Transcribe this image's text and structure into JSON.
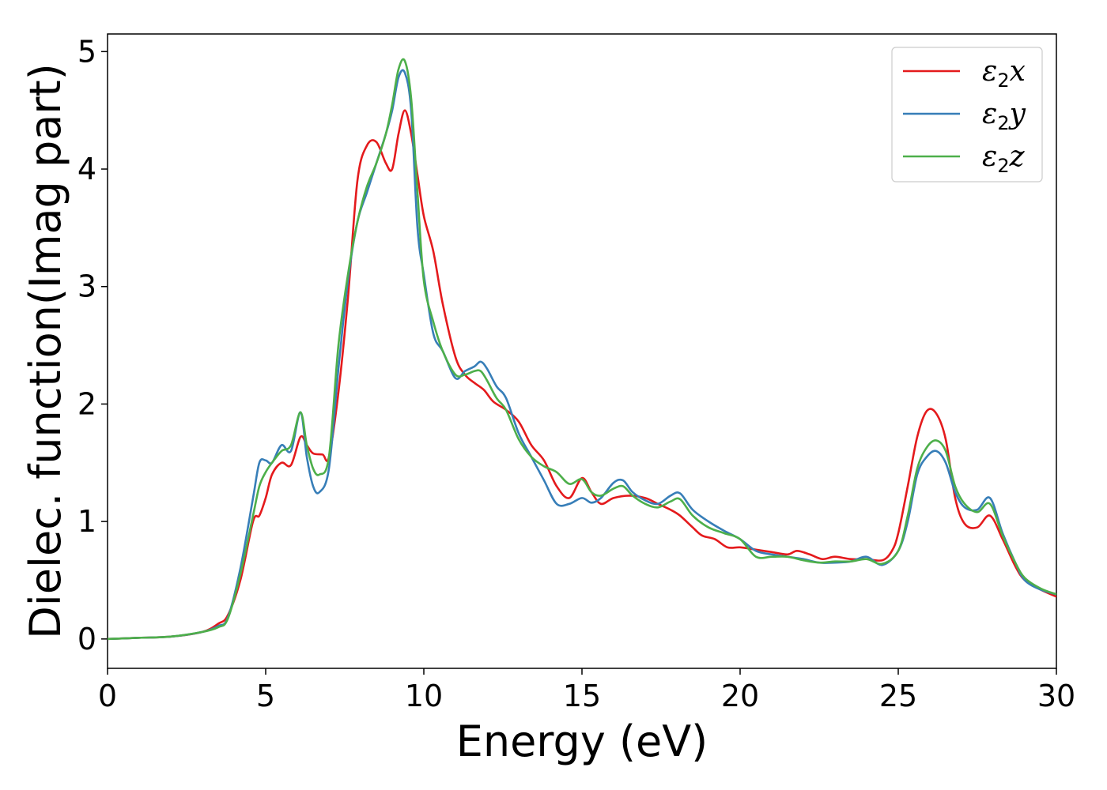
{
  "chart_data": {
    "type": "line",
    "xlabel": "Energy (eV)",
    "ylabel": "Dielec. function(Imag part)",
    "xlim": [
      0,
      30
    ],
    "ylim": [
      -0.25,
      5.15
    ],
    "xticks": [
      0,
      5,
      10,
      15,
      20,
      25,
      30
    ],
    "yticks": [
      0,
      1,
      2,
      3,
      4,
      5
    ],
    "grid": false,
    "legend_position": "top-right",
    "series": [
      {
        "name": "ε₂x",
        "label_base": "ε",
        "label_sub": "2",
        "label_suffix": "x",
        "color": "#e41a1c",
        "points": [
          [
            0,
            0
          ],
          [
            1,
            0.01
          ],
          [
            2,
            0.02
          ],
          [
            3,
            0.06
          ],
          [
            3.5,
            0.13
          ],
          [
            3.8,
            0.2
          ],
          [
            4.2,
            0.5
          ],
          [
            4.6,
            1.0
          ],
          [
            4.8,
            1.05
          ],
          [
            5.0,
            1.2
          ],
          [
            5.2,
            1.4
          ],
          [
            5.5,
            1.5
          ],
          [
            5.8,
            1.48
          ],
          [
            6.1,
            1.72
          ],
          [
            6.3,
            1.65
          ],
          [
            6.5,
            1.58
          ],
          [
            6.8,
            1.57
          ],
          [
            7.0,
            1.55
          ],
          [
            7.3,
            2.1
          ],
          [
            7.6,
            2.9
          ],
          [
            7.9,
            3.9
          ],
          [
            8.2,
            4.2
          ],
          [
            8.5,
            4.23
          ],
          [
            8.8,
            4.05
          ],
          [
            9.0,
            4.0
          ],
          [
            9.2,
            4.3
          ],
          [
            9.4,
            4.5
          ],
          [
            9.6,
            4.3
          ],
          [
            9.8,
            3.95
          ],
          [
            10.0,
            3.6
          ],
          [
            10.3,
            3.3
          ],
          [
            10.6,
            2.85
          ],
          [
            11.0,
            2.4
          ],
          [
            11.3,
            2.25
          ],
          [
            11.6,
            2.18
          ],
          [
            11.9,
            2.12
          ],
          [
            12.2,
            2.02
          ],
          [
            12.6,
            1.95
          ],
          [
            13.0,
            1.85
          ],
          [
            13.4,
            1.65
          ],
          [
            13.8,
            1.52
          ],
          [
            14.2,
            1.3
          ],
          [
            14.6,
            1.2
          ],
          [
            15.0,
            1.37
          ],
          [
            15.3,
            1.25
          ],
          [
            15.6,
            1.15
          ],
          [
            16.0,
            1.2
          ],
          [
            16.5,
            1.22
          ],
          [
            17.0,
            1.2
          ],
          [
            17.4,
            1.15
          ],
          [
            17.8,
            1.1
          ],
          [
            18.1,
            1.05
          ],
          [
            18.5,
            0.95
          ],
          [
            18.8,
            0.88
          ],
          [
            19.2,
            0.85
          ],
          [
            19.6,
            0.78
          ],
          [
            20.0,
            0.78
          ],
          [
            20.5,
            0.76
          ],
          [
            21.0,
            0.74
          ],
          [
            21.5,
            0.72
          ],
          [
            21.8,
            0.75
          ],
          [
            22.2,
            0.72
          ],
          [
            22.6,
            0.68
          ],
          [
            23.0,
            0.7
          ],
          [
            23.5,
            0.68
          ],
          [
            24.0,
            0.68
          ],
          [
            24.5,
            0.67
          ],
          [
            24.8,
            0.75
          ],
          [
            25.0,
            0.9
          ],
          [
            25.3,
            1.3
          ],
          [
            25.6,
            1.72
          ],
          [
            25.9,
            1.94
          ],
          [
            26.2,
            1.92
          ],
          [
            26.5,
            1.7
          ],
          [
            26.8,
            1.2
          ],
          [
            27.1,
            0.98
          ],
          [
            27.5,
            0.95
          ],
          [
            27.9,
            1.05
          ],
          [
            28.3,
            0.85
          ],
          [
            28.7,
            0.62
          ],
          [
            29.0,
            0.5
          ],
          [
            29.5,
            0.42
          ],
          [
            30.0,
            0.36
          ]
        ]
      },
      {
        "name": "ε₂y",
        "label_base": "ε",
        "label_sub": "2",
        "label_suffix": "y",
        "color": "#377eb8",
        "points": [
          [
            0,
            0
          ],
          [
            1,
            0.01
          ],
          [
            2,
            0.02
          ],
          [
            3,
            0.06
          ],
          [
            3.5,
            0.11
          ],
          [
            3.8,
            0.18
          ],
          [
            4.2,
            0.6
          ],
          [
            4.6,
            1.2
          ],
          [
            4.8,
            1.5
          ],
          [
            5.0,
            1.52
          ],
          [
            5.2,
            1.5
          ],
          [
            5.5,
            1.65
          ],
          [
            5.8,
            1.6
          ],
          [
            6.1,
            1.93
          ],
          [
            6.3,
            1.55
          ],
          [
            6.5,
            1.3
          ],
          [
            6.7,
            1.25
          ],
          [
            7.0,
            1.45
          ],
          [
            7.3,
            2.3
          ],
          [
            7.6,
            3.05
          ],
          [
            7.9,
            3.55
          ],
          [
            8.2,
            3.8
          ],
          [
            8.5,
            4.05
          ],
          [
            8.8,
            4.3
          ],
          [
            9.0,
            4.5
          ],
          [
            9.2,
            4.78
          ],
          [
            9.4,
            4.82
          ],
          [
            9.6,
            4.5
          ],
          [
            9.8,
            3.5
          ],
          [
            10.0,
            3.1
          ],
          [
            10.3,
            2.6
          ],
          [
            10.6,
            2.45
          ],
          [
            11.0,
            2.22
          ],
          [
            11.3,
            2.28
          ],
          [
            11.6,
            2.32
          ],
          [
            11.8,
            2.36
          ],
          [
            12.0,
            2.3
          ],
          [
            12.3,
            2.15
          ],
          [
            12.6,
            2.05
          ],
          [
            13.0,
            1.75
          ],
          [
            13.4,
            1.55
          ],
          [
            13.8,
            1.35
          ],
          [
            14.2,
            1.15
          ],
          [
            14.6,
            1.15
          ],
          [
            15.0,
            1.2
          ],
          [
            15.3,
            1.16
          ],
          [
            15.6,
            1.2
          ],
          [
            16.0,
            1.33
          ],
          [
            16.3,
            1.35
          ],
          [
            16.6,
            1.25
          ],
          [
            17.0,
            1.18
          ],
          [
            17.4,
            1.15
          ],
          [
            17.8,
            1.22
          ],
          [
            18.1,
            1.24
          ],
          [
            18.5,
            1.1
          ],
          [
            19.0,
            1.0
          ],
          [
            19.5,
            0.92
          ],
          [
            20.0,
            0.85
          ],
          [
            20.5,
            0.75
          ],
          [
            21.0,
            0.72
          ],
          [
            21.5,
            0.7
          ],
          [
            22.0,
            0.68
          ],
          [
            22.5,
            0.65
          ],
          [
            23.0,
            0.65
          ],
          [
            23.5,
            0.66
          ],
          [
            24.0,
            0.7
          ],
          [
            24.5,
            0.63
          ],
          [
            25.0,
            0.75
          ],
          [
            25.3,
            1.0
          ],
          [
            25.6,
            1.4
          ],
          [
            25.9,
            1.55
          ],
          [
            26.2,
            1.6
          ],
          [
            26.5,
            1.5
          ],
          [
            26.8,
            1.25
          ],
          [
            27.1,
            1.12
          ],
          [
            27.5,
            1.1
          ],
          [
            27.9,
            1.2
          ],
          [
            28.3,
            0.9
          ],
          [
            28.7,
            0.65
          ],
          [
            29.0,
            0.5
          ],
          [
            29.5,
            0.42
          ],
          [
            30.0,
            0.38
          ]
        ]
      },
      {
        "name": "ε₂z",
        "label_base": "ε",
        "label_sub": "2",
        "label_suffix": "z",
        "color": "#4daf4a",
        "points": [
          [
            0,
            0
          ],
          [
            1,
            0.01
          ],
          [
            2,
            0.02
          ],
          [
            3,
            0.06
          ],
          [
            3.5,
            0.1
          ],
          [
            3.8,
            0.17
          ],
          [
            4.2,
            0.55
          ],
          [
            4.6,
            1.05
          ],
          [
            4.8,
            1.3
          ],
          [
            5.0,
            1.42
          ],
          [
            5.2,
            1.5
          ],
          [
            5.5,
            1.6
          ],
          [
            5.8,
            1.65
          ],
          [
            6.1,
            1.93
          ],
          [
            6.3,
            1.65
          ],
          [
            6.5,
            1.45
          ],
          [
            6.7,
            1.4
          ],
          [
            7.0,
            1.55
          ],
          [
            7.3,
            2.5
          ],
          [
            7.6,
            3.1
          ],
          [
            7.9,
            3.55
          ],
          [
            8.2,
            3.85
          ],
          [
            8.5,
            4.05
          ],
          [
            8.8,
            4.3
          ],
          [
            9.0,
            4.55
          ],
          [
            9.2,
            4.85
          ],
          [
            9.4,
            4.92
          ],
          [
            9.6,
            4.6
          ],
          [
            9.8,
            3.8
          ],
          [
            10.0,
            3.05
          ],
          [
            10.3,
            2.7
          ],
          [
            10.6,
            2.45
          ],
          [
            11.0,
            2.25
          ],
          [
            11.3,
            2.25
          ],
          [
            11.6,
            2.28
          ],
          [
            11.8,
            2.28
          ],
          [
            12.0,
            2.2
          ],
          [
            12.3,
            2.05
          ],
          [
            12.6,
            1.95
          ],
          [
            13.0,
            1.7
          ],
          [
            13.4,
            1.55
          ],
          [
            13.8,
            1.47
          ],
          [
            14.2,
            1.42
          ],
          [
            14.6,
            1.32
          ],
          [
            15.0,
            1.36
          ],
          [
            15.3,
            1.25
          ],
          [
            15.6,
            1.22
          ],
          [
            16.0,
            1.28
          ],
          [
            16.3,
            1.3
          ],
          [
            16.6,
            1.22
          ],
          [
            17.0,
            1.15
          ],
          [
            17.4,
            1.12
          ],
          [
            17.8,
            1.17
          ],
          [
            18.1,
            1.19
          ],
          [
            18.5,
            1.05
          ],
          [
            19.0,
            0.95
          ],
          [
            19.5,
            0.9
          ],
          [
            20.0,
            0.85
          ],
          [
            20.5,
            0.7
          ],
          [
            21.0,
            0.7
          ],
          [
            21.5,
            0.7
          ],
          [
            22.0,
            0.67
          ],
          [
            22.5,
            0.65
          ],
          [
            23.0,
            0.66
          ],
          [
            23.5,
            0.66
          ],
          [
            24.0,
            0.68
          ],
          [
            24.5,
            0.64
          ],
          [
            25.0,
            0.75
          ],
          [
            25.3,
            1.05
          ],
          [
            25.6,
            1.45
          ],
          [
            25.9,
            1.63
          ],
          [
            26.2,
            1.69
          ],
          [
            26.5,
            1.6
          ],
          [
            26.8,
            1.3
          ],
          [
            27.1,
            1.15
          ],
          [
            27.5,
            1.08
          ],
          [
            27.9,
            1.15
          ],
          [
            28.3,
            0.88
          ],
          [
            28.7,
            0.65
          ],
          [
            29.0,
            0.52
          ],
          [
            29.5,
            0.43
          ],
          [
            30.0,
            0.38
          ]
        ]
      }
    ]
  }
}
